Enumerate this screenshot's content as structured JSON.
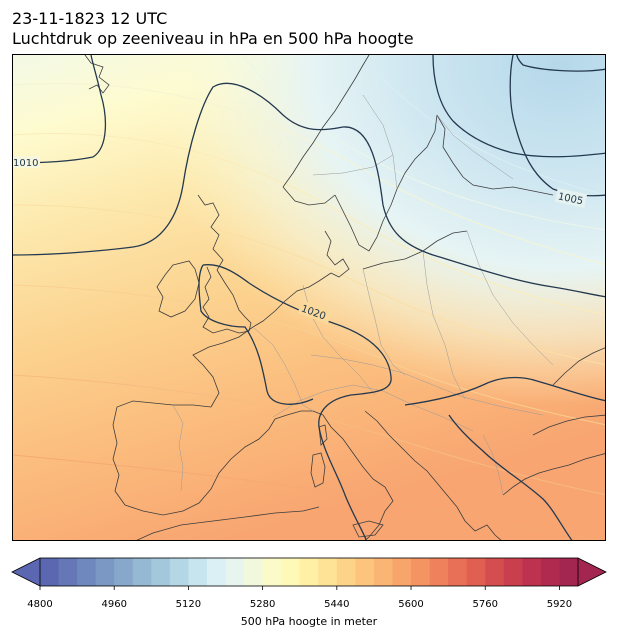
{
  "title": {
    "line1": "23-11-1823 12 UTC",
    "line2": "Luchtdruk op zeeniveau in hPa en 500 hPa hoogte"
  },
  "map": {
    "isobar_labels": [
      "1010",
      "1020",
      "1005"
    ],
    "isobar_color": "#24394f"
  },
  "colorbar": {
    "label": "500 hPa hoogte in meter",
    "ticks": [
      "4800",
      "4960",
      "5120",
      "5280",
      "5440",
      "5600",
      "5760",
      "5920"
    ],
    "min": 4800,
    "max": 5960,
    "step": 40,
    "colormap": "RdYlBu_r",
    "colors": [
      "#5b67b1",
      "#6577b7",
      "#6f88bd",
      "#7b98c4",
      "#88a8cb",
      "#95b8d3",
      "#a3c8dc",
      "#b4d7e6",
      "#c7e5ef",
      "#daf0f4",
      "#e8f5ee",
      "#f2f8dc",
      "#fafbc9",
      "#fff9b7",
      "#fff0a6",
      "#fee296",
      "#fdd389",
      "#fcc47d",
      "#fab574",
      "#f8a56b",
      "#f49463",
      "#ef825c",
      "#e87056",
      "#e05f51",
      "#d54e4f",
      "#ca3f4e",
      "#bd334f",
      "#b02a50",
      "#a32650"
    ]
  }
}
